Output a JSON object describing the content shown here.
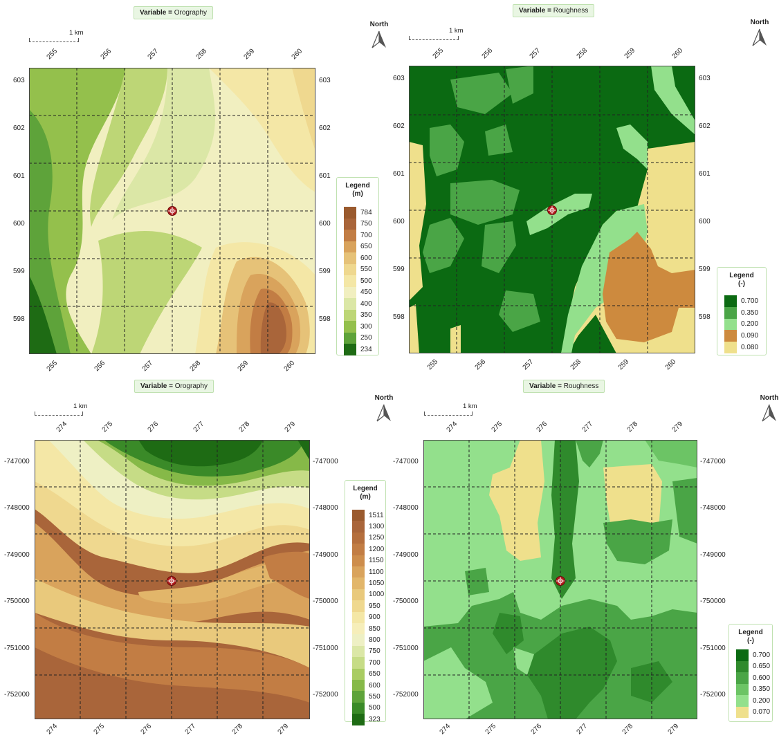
{
  "panels": [
    {
      "id": "orography-1",
      "title_label": "Variable = ",
      "title_value": "Orography",
      "north": "North",
      "scale": "1 km",
      "x_ticks": [
        "255",
        "256",
        "257",
        "258",
        "259",
        "260"
      ],
      "y_ticks": [
        "603",
        "602",
        "601",
        "600",
        "599",
        "598"
      ],
      "legend_title": "Legend",
      "legend_unit": "(m)",
      "legend": [
        {
          "label": "784",
          "color": "#9a5a2e"
        },
        {
          "label": "750",
          "color": "#a9653a"
        },
        {
          "label": "700",
          "color": "#c27d44"
        },
        {
          "label": "650",
          "color": "#d9a35c"
        },
        {
          "label": "600",
          "color": "#e6c278"
        },
        {
          "label": "550",
          "color": "#efd88f"
        },
        {
          "label": "500",
          "color": "#f4e7a6"
        },
        {
          "label": "450",
          "color": "#f1efc0"
        },
        {
          "label": "400",
          "color": "#dbe7a6"
        },
        {
          "label": "350",
          "color": "#bdd676"
        },
        {
          "label": "300",
          "color": "#94c04c"
        },
        {
          "label": "250",
          "color": "#5ea33a"
        },
        {
          "label": "234",
          "color": "#1e6b14"
        }
      ]
    },
    {
      "id": "roughness-1",
      "title_label": "Variable = ",
      "title_value": "Roughness",
      "north": "North",
      "scale": "1 km",
      "x_ticks": [
        "255",
        "256",
        "257",
        "258",
        "259",
        "260"
      ],
      "y_ticks": [
        "603",
        "602",
        "601",
        "600",
        "599",
        "598"
      ],
      "legend_title": "Legend",
      "legend_unit": "(-)",
      "legend": [
        {
          "label": "0.700",
          "color": "#0b6a12"
        },
        {
          "label": "0.350",
          "color": "#4aa546"
        },
        {
          "label": "0.200",
          "color": "#93e08c"
        },
        {
          "label": "0.090",
          "color": "#cd8a3e"
        },
        {
          "label": "0.080",
          "color": "#efe08c"
        }
      ]
    },
    {
      "id": "orography-2",
      "title_label": "Variable = ",
      "title_value": "Orography",
      "north": "North",
      "scale": "1 km",
      "x_ticks": [
        "274",
        "275",
        "276",
        "277",
        "278",
        "279"
      ],
      "y_ticks": [
        "-747000",
        "-748000",
        "-749000",
        "-750000",
        "-751000",
        "-752000"
      ],
      "legend_title": "Legend",
      "legend_unit": "(m)",
      "legend": [
        {
          "label": "1511",
          "color": "#9a5a2e"
        },
        {
          "label": "1300",
          "color": "#a9653a"
        },
        {
          "label": "1250",
          "color": "#b56f3d"
        },
        {
          "label": "1200",
          "color": "#c27d44"
        },
        {
          "label": "1150",
          "color": "#cd8d4c"
        },
        {
          "label": "1100",
          "color": "#d9a35c"
        },
        {
          "label": "1050",
          "color": "#e2b66a"
        },
        {
          "label": "1000",
          "color": "#e9c97c"
        },
        {
          "label": "950",
          "color": "#efd88f"
        },
        {
          "label": "900",
          "color": "#f4e7a6"
        },
        {
          "label": "850",
          "color": "#f6eeba"
        },
        {
          "label": "800",
          "color": "#eef0c4"
        },
        {
          "label": "750",
          "color": "#dbe7a6"
        },
        {
          "label": "700",
          "color": "#c6dc86"
        },
        {
          "label": "650",
          "color": "#a9cc62"
        },
        {
          "label": "600",
          "color": "#86b948"
        },
        {
          "label": "550",
          "color": "#5ea33a"
        },
        {
          "label": "500",
          "color": "#3a8a28"
        },
        {
          "label": "323",
          "color": "#1e6b14"
        }
      ]
    },
    {
      "id": "roughness-2",
      "title_label": "Variable = ",
      "title_value": "Roughness",
      "north": "North",
      "scale": "1 km",
      "x_ticks": [
        "274",
        "275",
        "276",
        "277",
        "278",
        "279"
      ],
      "y_ticks": [
        "-747000",
        "-748000",
        "-749000",
        "-750000",
        "-751000",
        "-752000"
      ],
      "legend_title": "Legend",
      "legend_unit": "(-)",
      "legend": [
        {
          "label": "0.700",
          "color": "#0b6a12"
        },
        {
          "label": "0.650",
          "color": "#2f8a2c"
        },
        {
          "label": "0.600",
          "color": "#4aa546"
        },
        {
          "label": "0.350",
          "color": "#6cc465"
        },
        {
          "label": "0.200",
          "color": "#93e08c"
        },
        {
          "label": "0.070",
          "color": "#efe08c"
        }
      ]
    }
  ]
}
